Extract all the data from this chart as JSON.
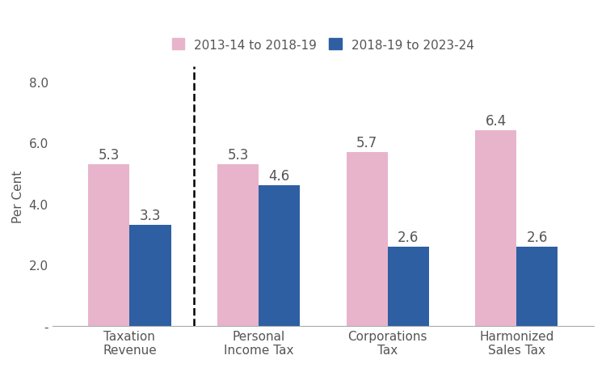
{
  "categories": [
    "Taxation\nRevenue",
    "Personal\nIncome Tax",
    "Corporations\nTax",
    "Harmonized\nSales Tax"
  ],
  "series1_label": "2013-14 to 2018-19",
  "series2_label": "2018-19 to 2023-24",
  "series1_values": [
    5.3,
    5.3,
    5.7,
    6.4
  ],
  "series2_values": [
    3.3,
    4.6,
    2.6,
    2.6
  ],
  "series1_color": "#e8b4cb",
  "series2_color": "#2e5fa3",
  "bar_width": 0.32,
  "ylim": [
    0,
    8.5
  ],
  "yticks": [
    0,
    2.0,
    4.0,
    6.0,
    8.0
  ],
  "ytick_labels": [
    "-",
    "2.0",
    "4.0",
    "6.0",
    "8.0"
  ],
  "ylabel": "Per Cent",
  "dashed_line_x": 0.5,
  "value_labels_series1": [
    "5.3",
    "5.3",
    "5.7",
    "6.4"
  ],
  "value_labels_series2": [
    "3.3",
    "4.6",
    "2.6",
    "2.6"
  ],
  "background_color": "#ffffff",
  "font_color": "#555555",
  "label_fontsize": 11,
  "tick_fontsize": 11,
  "value_fontsize": 12,
  "legend_fontsize": 11
}
